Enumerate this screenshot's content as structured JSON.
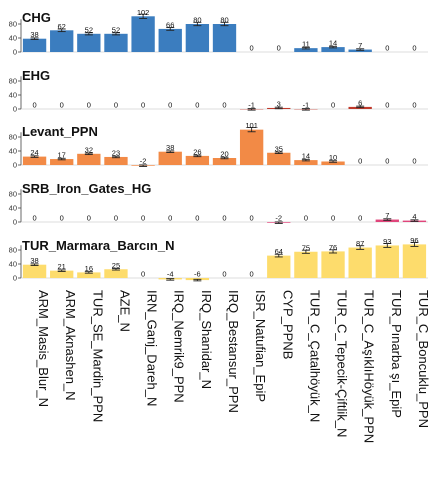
{
  "chart_data": {
    "type": "bar",
    "categories": [
      "ARM_Masis_Blur_N",
      "ARM_Aknashen_N",
      "TUR_SE_Mardin_PPN",
      "AZE_N",
      "IRN_Ganj_Dareh_N",
      "IRQ_Nemrik9_PPN",
      "IRQ_Shanidar_N",
      "IRQ_Bestansur_PPN",
      "ISR_Natufian_EpiP",
      "CYP_PPNB",
      "TUR_C_Çatalhöyük_N",
      "TUR_C_Tepecik-Çiftlik_N",
      "TUR_C_AşıklıHöyük_PPN",
      "TUR_Pınarba şı_EpiP",
      "TUR_C_Boncuklu_PPN"
    ],
    "yticks": [
      0,
      40,
      80
    ],
    "ylim": [
      0,
      100
    ],
    "legend": "none",
    "panels": [
      {
        "name": "CHG",
        "color": "#3B7DBF",
        "values": [
          38,
          62,
          52,
          52,
          102,
          66,
          80,
          80,
          0,
          0,
          11,
          14,
          7,
          0,
          0
        ],
        "labels": [
          "38",
          "62",
          "52",
          "52",
          "102",
          "66",
          "80",
          "80",
          "0",
          "0",
          "11",
          "14",
          "7",
          "0",
          "0"
        ]
      },
      {
        "name": "EHG",
        "color": "#C0392B",
        "values": [
          0,
          0,
          0,
          0,
          0,
          0,
          0,
          0,
          -1,
          3,
          -1,
          0,
          6,
          0,
          0
        ],
        "labels": [
          "0",
          "0",
          "0",
          "0",
          "0",
          "0",
          "0",
          "0",
          "-1",
          "3",
          "-1",
          "0",
          "6",
          "0",
          "0"
        ]
      },
      {
        "name": "Levant_PPN",
        "color": "#F28A46",
        "values": [
          24,
          17,
          32,
          23,
          -2,
          38,
          26,
          20,
          101,
          35,
          14,
          10,
          0,
          0,
          0
        ],
        "labels": [
          "24",
          "17",
          "32",
          "23",
          "-2",
          "38",
          "26",
          "20",
          "101",
          "35",
          "14",
          "10",
          "0",
          "0",
          "0"
        ]
      },
      {
        "name": "SRB_Iron_Gates_HG",
        "color": "#E0457B",
        "values": [
          0,
          0,
          0,
          0,
          0,
          0,
          0,
          0,
          0,
          -2,
          0,
          0,
          0,
          7,
          4
        ],
        "labels": [
          "0",
          "0",
          "0",
          "0",
          "0",
          "0",
          "0",
          "0",
          "0",
          "-2",
          "0",
          "0",
          "0",
          "7",
          "4"
        ]
      },
      {
        "name": "TUR_Marmara_Barcın_N",
        "color": "#FDDC6C",
        "values": [
          38,
          21,
          16,
          25,
          0,
          -4,
          -6,
          0,
          0,
          64,
          75,
          76,
          87,
          93,
          96
        ],
        "labels": [
          "38",
          "21",
          "16",
          "25",
          "0",
          "-4",
          "-6",
          "0",
          "0",
          "64",
          "75",
          "76",
          "87",
          "93",
          "96"
        ]
      }
    ]
  }
}
